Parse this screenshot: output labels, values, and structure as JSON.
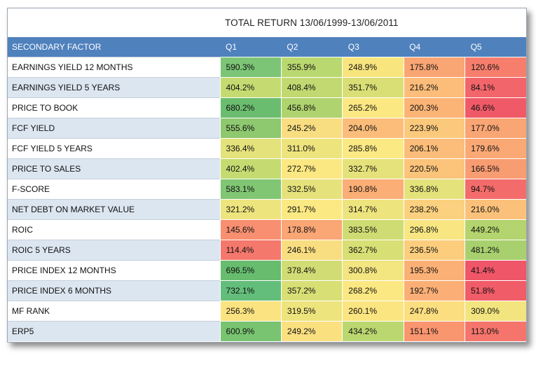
{
  "title": "TOTAL RETURN 13/06/1999-13/06/2011",
  "header": {
    "factor": "SECONDARY FACTOR",
    "quintiles": [
      "Q1",
      "Q2",
      "Q3",
      "Q4",
      "Q5"
    ]
  },
  "rows": [
    {
      "factor": "EARNINGS YIELD 12 MONTHS",
      "values": [
        "590.3%",
        "355.9%",
        "248.9%",
        "175.8%",
        "120.6%"
      ],
      "colors": [
        "#7cc576",
        "#b9d86f",
        "#f9e57e",
        "#f9a574",
        "#f77e6d"
      ]
    },
    {
      "factor": "EARNINGS YIELD 5 YEARS",
      "values": [
        "404.2%",
        "408.4%",
        "351.7%",
        "216.2%",
        "84.1%"
      ],
      "colors": [
        "#c5db71",
        "#c2d971",
        "#d9df75",
        "#fbbd79",
        "#f2656a"
      ]
    },
    {
      "factor": "PRICE TO BOOK",
      "values": [
        "680.2%",
        "456.8%",
        "265.2%",
        "200.3%",
        "46.6%"
      ],
      "colors": [
        "#6abd6e",
        "#afd36e",
        "#fbe882",
        "#fbb476",
        "#f05a68"
      ]
    },
    {
      "factor": "FCF YIELD",
      "values": [
        "555.6%",
        "245.2%",
        "204.0%",
        "223.9%",
        "177.0%"
      ],
      "colors": [
        "#8ec86f",
        "#f9de81",
        "#fbbd79",
        "#fbc97c",
        "#f9a574"
      ]
    },
    {
      "factor": "FCF YIELD 5 YEARS",
      "values": [
        "336.4%",
        "311.0%",
        "285.8%",
        "206.1%",
        "179.6%"
      ],
      "colors": [
        "#e4e27a",
        "#eee47e",
        "#fbe983",
        "#fbbd79",
        "#faa975"
      ]
    },
    {
      "factor": "PRICE TO SALES",
      "values": [
        "402.4%",
        "272.7%",
        "332.7%",
        "220.5%",
        "166.5%"
      ],
      "colors": [
        "#c5db71",
        "#fbe882",
        "#e6e27b",
        "#fbc47a",
        "#f89c72"
      ]
    },
    {
      "factor": "F-SCORE",
      "values": [
        "583.1%",
        "332.5%",
        "190.8%",
        "336.8%",
        "94.7%"
      ],
      "colors": [
        "#80c673",
        "#e6e27b",
        "#fbae75",
        "#e4e27a",
        "#f36c6b"
      ]
    },
    {
      "factor": "NET DEBT ON MARKET VALUE",
      "values": [
        "321.2%",
        "291.7%",
        "314.7%",
        "238.2%",
        "216.0%"
      ],
      "colors": [
        "#ede47e",
        "#fbe983",
        "#eee47e",
        "#fbd07e",
        "#fbc17a"
      ]
    },
    {
      "factor": "ROIC",
      "values": [
        "145.6%",
        "178.8%",
        "383.5%",
        "296.8%",
        "449.2%"
      ],
      "colors": [
        "#f78f70",
        "#faa675",
        "#cfdc73",
        "#f7e682",
        "#b3d46e"
      ]
    },
    {
      "factor": "ROIC 5 YEARS",
      "values": [
        "114.4%",
        "246.1%",
        "362.7%",
        "236.5%",
        "481.2%"
      ],
      "colors": [
        "#f5786c",
        "#f9dd81",
        "#d8df75",
        "#fbcd7d",
        "#a9d06f"
      ]
    },
    {
      "factor": "PRICE INDEX 12 MONTHS",
      "values": [
        "696.5%",
        "378.4%",
        "300.8%",
        "195.3%",
        "41.4%"
      ],
      "colors": [
        "#67bc6e",
        "#d1dd74",
        "#f3e580",
        "#fbb076",
        "#ef5668"
      ]
    },
    {
      "factor": "PRICE INDEX 6 MONTHS",
      "values": [
        "732.1%",
        "357.2%",
        "268.2%",
        "192.7%",
        "51.8%"
      ],
      "colors": [
        "#63be7b",
        "#d8df75",
        "#fbe882",
        "#fbaf76",
        "#f05c68"
      ]
    },
    {
      "factor": "MF RANK",
      "values": [
        "256.3%",
        "319.5%",
        "260.1%",
        "247.8%",
        "309.0%"
      ],
      "colors": [
        "#fbe381",
        "#eee47e",
        "#fbe581",
        "#fbde80",
        "#f2e57f"
      ]
    },
    {
      "factor": "ERP5",
      "values": [
        "600.9%",
        "249.2%",
        "434.2%",
        "151.1%",
        "113.0%"
      ],
      "colors": [
        "#78c470",
        "#fbe080",
        "#bbd770",
        "#f9956f",
        "#f5756c"
      ]
    }
  ]
}
